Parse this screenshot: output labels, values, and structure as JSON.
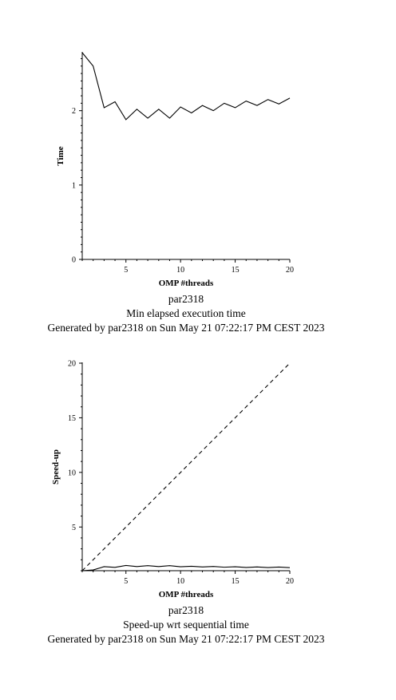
{
  "chart_data": [
    {
      "type": "line",
      "xlabel": "OMP #threads",
      "ylabel": "Time",
      "xlim": [
        1,
        20
      ],
      "ylim": [
        0,
        2.78
      ],
      "xticks": [
        5,
        10,
        15,
        20
      ],
      "yticks": [
        0,
        1,
        2
      ],
      "grid": false,
      "captions": [
        "par2318",
        "Min elapsed execution time",
        "Generated by par2318 on Sun May 21 07:22:17 PM CEST 2023"
      ],
      "series": [
        {
          "x": [
            1,
            2,
            3,
            4,
            5,
            6,
            7,
            8,
            9,
            10,
            11,
            12,
            13,
            14,
            15,
            16,
            17,
            18,
            19,
            20
          ],
          "values": [
            2.78,
            2.6,
            2.04,
            2.12,
            1.88,
            2.02,
            1.9,
            2.02,
            1.9,
            2.05,
            1.97,
            2.07,
            2.0,
            2.1,
            2.04,
            2.13,
            2.07,
            2.15,
            2.09,
            2.17
          ],
          "style": "solid"
        }
      ]
    },
    {
      "type": "line",
      "xlabel": "OMP #threads",
      "ylabel": "Speed-up",
      "xlim": [
        1,
        20
      ],
      "ylim": [
        1,
        20
      ],
      "xticks": [
        5,
        10,
        15,
        20
      ],
      "yticks": [
        5,
        10,
        15,
        20
      ],
      "grid": false,
      "captions": [
        "par2318",
        "Speed-up wrt sequential time",
        "Generated by par2318 on Sun May 21 07:22:17 PM CEST 2023"
      ],
      "series": [
        {
          "x": [
            1,
            2,
            3,
            4,
            5,
            6,
            7,
            8,
            9,
            10,
            11,
            12,
            13,
            14,
            15,
            16,
            17,
            18,
            19,
            20
          ],
          "values": [
            1.0,
            1.07,
            1.37,
            1.31,
            1.48,
            1.38,
            1.46,
            1.38,
            1.46,
            1.36,
            1.41,
            1.34,
            1.39,
            1.32,
            1.36,
            1.3,
            1.34,
            1.29,
            1.33,
            1.28
          ],
          "style": "solid"
        },
        {
          "x": [
            1,
            20
          ],
          "values": [
            1,
            20
          ],
          "style": "dashed"
        }
      ]
    }
  ]
}
